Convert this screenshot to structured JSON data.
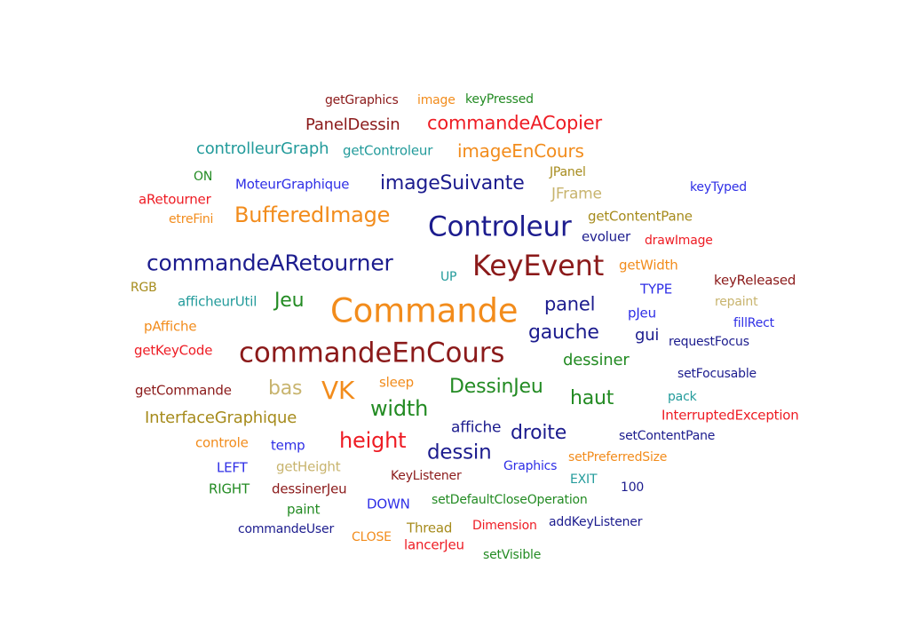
{
  "colors": {
    "darkred": "#8b1a1a",
    "orange": "#f28c1c",
    "green": "#238b23",
    "red": "#ee1c24",
    "navy": "#1c1c8e",
    "teal": "#239b9b",
    "blue": "#2e2ee6",
    "olive": "#a68b1c",
    "tan": "#c8b46e",
    "brick": "#c81e1e"
  },
  "words": [
    {
      "text": "getGraphics",
      "color": "darkred"
    },
    {
      "text": "image",
      "color": "orange"
    },
    {
      "text": "keyPressed",
      "color": "green"
    },
    {
      "text": "PanelDessin",
      "color": "darkred"
    },
    {
      "text": "commandeACopier",
      "color": "red"
    },
    {
      "text": "controlleurGraph",
      "color": "teal"
    },
    {
      "text": "getControleur",
      "color": "teal"
    },
    {
      "text": "imageEnCours",
      "color": "orange"
    },
    {
      "text": "ON",
      "color": "green"
    },
    {
      "text": "JPanel",
      "color": "olive"
    },
    {
      "text": "MoteurGraphique",
      "color": "blue"
    },
    {
      "text": "imageSuivante",
      "color": "navy"
    },
    {
      "text": "keyTyped",
      "color": "blue"
    },
    {
      "text": "aRetourner",
      "color": "red"
    },
    {
      "text": "JFrame",
      "color": "tan"
    },
    {
      "text": "BufferedImage",
      "color": "orange"
    },
    {
      "text": "etreFini",
      "color": "orange"
    },
    {
      "text": "Controleur",
      "color": "navy"
    },
    {
      "text": "getContentPane",
      "color": "olive"
    },
    {
      "text": "evoluer",
      "color": "navy"
    },
    {
      "text": "drawImage",
      "color": "red"
    },
    {
      "text": "commandeARetourner",
      "color": "navy"
    },
    {
      "text": "KeyEvent",
      "color": "darkred"
    },
    {
      "text": "getWidth",
      "color": "orange"
    },
    {
      "text": "UP",
      "color": "teal"
    },
    {
      "text": "RGB",
      "color": "olive"
    },
    {
      "text": "keyReleased",
      "color": "darkred"
    },
    {
      "text": "TYPE",
      "color": "blue"
    },
    {
      "text": "afficheurUtil",
      "color": "teal"
    },
    {
      "text": "Jeu",
      "color": "green"
    },
    {
      "text": "Commande",
      "color": "orange"
    },
    {
      "text": "panel",
      "color": "navy"
    },
    {
      "text": "repaint",
      "color": "tan"
    },
    {
      "text": "pJeu",
      "color": "blue"
    },
    {
      "text": "pAffiche",
      "color": "orange"
    },
    {
      "text": "fillRect",
      "color": "blue"
    },
    {
      "text": "gauche",
      "color": "navy"
    },
    {
      "text": "gui",
      "color": "navy"
    },
    {
      "text": "requestFocus",
      "color": "navy"
    },
    {
      "text": "getKeyCode",
      "color": "red"
    },
    {
      "text": "commandeEnCours",
      "color": "darkred"
    },
    {
      "text": "dessiner",
      "color": "green"
    },
    {
      "text": "setFocusable",
      "color": "navy"
    },
    {
      "text": "getCommande",
      "color": "darkred"
    },
    {
      "text": "bas",
      "color": "tan"
    },
    {
      "text": "VK",
      "color": "orange"
    },
    {
      "text": "sleep",
      "color": "orange"
    },
    {
      "text": "DessinJeu",
      "color": "green"
    },
    {
      "text": "pack",
      "color": "teal"
    },
    {
      "text": "haut",
      "color": "green"
    },
    {
      "text": "width",
      "color": "green"
    },
    {
      "text": "InterruptedException",
      "color": "red"
    },
    {
      "text": "InterfaceGraphique",
      "color": "olive"
    },
    {
      "text": "affiche",
      "color": "navy"
    },
    {
      "text": "droite",
      "color": "navy"
    },
    {
      "text": "setContentPane",
      "color": "navy"
    },
    {
      "text": "height",
      "color": "red"
    },
    {
      "text": "controle",
      "color": "orange"
    },
    {
      "text": "temp",
      "color": "blue"
    },
    {
      "text": "dessin",
      "color": "navy"
    },
    {
      "text": "setPreferredSize",
      "color": "orange"
    },
    {
      "text": "Graphics",
      "color": "blue"
    },
    {
      "text": "LEFT",
      "color": "blue"
    },
    {
      "text": "getHeight",
      "color": "tan"
    },
    {
      "text": "KeyListener",
      "color": "darkred"
    },
    {
      "text": "EXIT",
      "color": "teal"
    },
    {
      "text": "RIGHT",
      "color": "green"
    },
    {
      "text": "dessinerJeu",
      "color": "darkred"
    },
    {
      "text": "100",
      "color": "navy"
    },
    {
      "text": "setDefaultCloseOperation",
      "color": "green"
    },
    {
      "text": "DOWN",
      "color": "blue"
    },
    {
      "text": "paint",
      "color": "green"
    },
    {
      "text": "addKeyListener",
      "color": "navy"
    },
    {
      "text": "commandeUser",
      "color": "navy"
    },
    {
      "text": "Thread",
      "color": "olive"
    },
    {
      "text": "Dimension",
      "color": "red"
    },
    {
      "text": "CLOSE",
      "color": "orange"
    },
    {
      "text": "lancerJeu",
      "color": "red"
    },
    {
      "text": "setVisible",
      "color": "green"
    }
  ]
}
